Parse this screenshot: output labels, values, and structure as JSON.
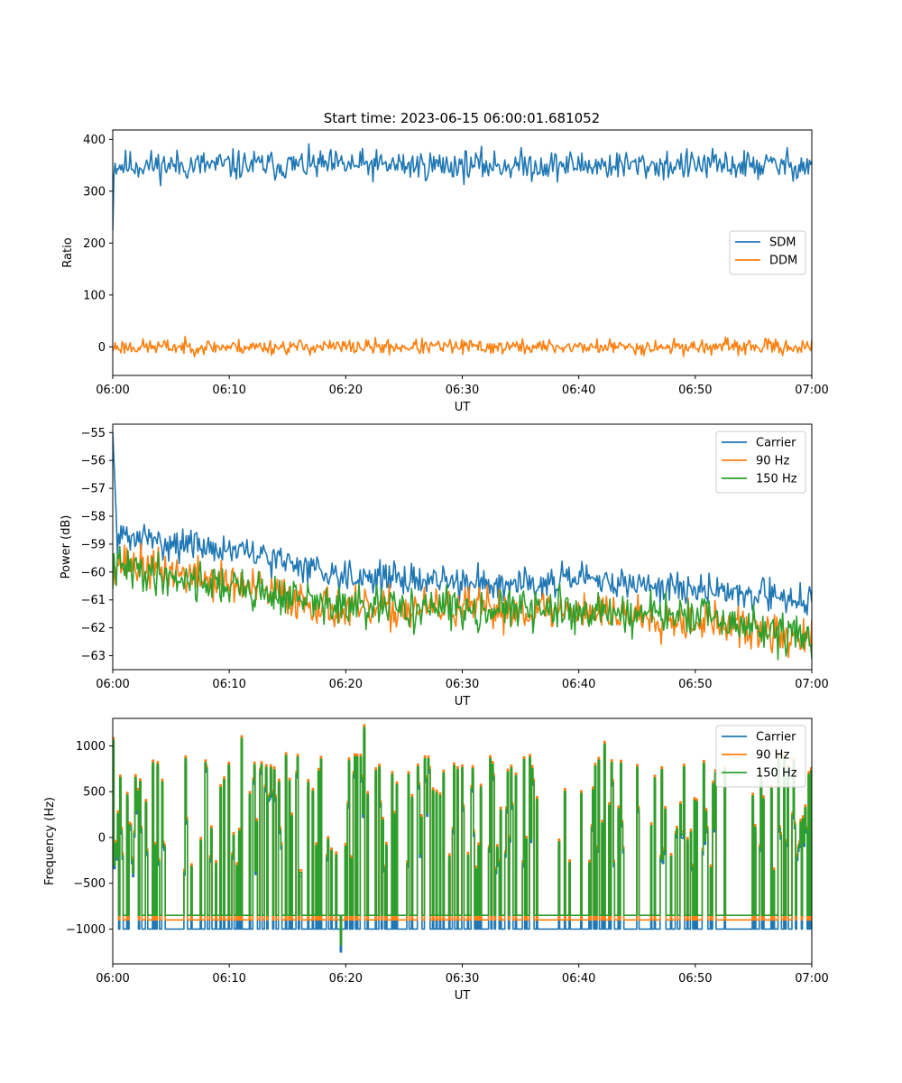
{
  "figure": {
    "title": "Start time: 2023-06-15 06:00:01.681052"
  },
  "colors": {
    "blue": "#1f77b4",
    "orange": "#ff7f0e",
    "green": "#2ca02c"
  },
  "chart_data": [
    {
      "type": "line",
      "xlabel": "UT",
      "ylabel": "Ratio",
      "xlim": [
        0,
        60
      ],
      "ylim": [
        -55,
        418
      ],
      "x_ticks": [
        0,
        10,
        20,
        30,
        40,
        50,
        60
      ],
      "x_tick_labels": [
        "06:00",
        "06:10",
        "06:20",
        "06:30",
        "06:40",
        "06:50",
        "07:00"
      ],
      "y_ticks": [
        0,
        100,
        200,
        300,
        400
      ],
      "y_tick_labels": [
        "0",
        "100",
        "200",
        "300",
        "400"
      ],
      "legend": {
        "position": "center-right",
        "entries": [
          "SDM",
          "DDM"
        ]
      },
      "series": [
        {
          "name": "SDM",
          "color": "#1f77b4",
          "mean": 350,
          "amplitude": 18,
          "start": 225,
          "seed": 11
        },
        {
          "name": "DDM",
          "color": "#ff7f0e",
          "mean": 0,
          "amplitude": 9,
          "start": -8,
          "seed": 23
        }
      ]
    },
    {
      "type": "line",
      "xlabel": "UT",
      "ylabel": "Power (dB)",
      "xlim": [
        0,
        60
      ],
      "ylim": [
        -63.5,
        -54.7
      ],
      "x_ticks": [
        0,
        10,
        20,
        30,
        40,
        50,
        60
      ],
      "x_tick_labels": [
        "06:00",
        "06:10",
        "06:20",
        "06:30",
        "06:40",
        "06:50",
        "07:00"
      ],
      "y_ticks": [
        -55,
        -56,
        -57,
        -58,
        -59,
        -60,
        -61,
        -62,
        -63
      ],
      "y_tick_labels": [
        "−55",
        "−56",
        "−57",
        "−58",
        "−59",
        "−60",
        "−61",
        "−62",
        "−63"
      ],
      "legend": {
        "position": "top-right",
        "entries": [
          "Carrier",
          "90 Hz",
          "150 Hz"
        ]
      },
      "series": [
        {
          "name": "Carrier",
          "color": "#1f77b4",
          "trend": [
            [
              0,
              -58.7
            ],
            [
              10,
              -59.2
            ],
            [
              20,
              -60.1
            ],
            [
              30,
              -60.4
            ],
            [
              40,
              -60.3
            ],
            [
              50,
              -60.6
            ],
            [
              60,
              -61.0
            ]
          ],
          "amplitude": 0.35,
          "start": -55.0,
          "seed": 31
        },
        {
          "name": "90 Hz",
          "color": "#ff7f0e",
          "trend": [
            [
              0,
              -59.6
            ],
            [
              10,
              -60.4
            ],
            [
              20,
              -61.4
            ],
            [
              30,
              -61.3
            ],
            [
              40,
              -61.4
            ],
            [
              50,
              -61.7
            ],
            [
              60,
              -62.5
            ]
          ],
          "amplitude": 0.45,
          "start": -60.3,
          "seed": 37
        },
        {
          "name": "150 Hz",
          "color": "#2ca02c",
          "trend": [
            [
              0,
              -59.8
            ],
            [
              10,
              -60.5
            ],
            [
              20,
              -61.3
            ],
            [
              30,
              -61.3
            ],
            [
              40,
              -61.4
            ],
            [
              50,
              -61.6
            ],
            [
              60,
              -62.4
            ]
          ],
          "amplitude": 0.45,
          "start": -60.6,
          "seed": 41
        }
      ]
    },
    {
      "type": "line",
      "xlabel": "UT",
      "ylabel": "Frequency (Hz)",
      "xlim": [
        0,
        60
      ],
      "ylim": [
        -1380,
        1300
      ],
      "x_ticks": [
        0,
        10,
        20,
        30,
        40,
        50,
        60
      ],
      "x_tick_labels": [
        "06:00",
        "06:10",
        "06:20",
        "06:30",
        "06:40",
        "06:50",
        "07:00"
      ],
      "y_ticks": [
        1000,
        500,
        0,
        -500,
        -1000
      ],
      "y_tick_labels": [
        "1000",
        "500",
        "0",
        "−500",
        "−1000"
      ],
      "legend": {
        "position": "top-right",
        "entries": [
          "Carrier",
          "90 Hz",
          "150 Hz"
        ]
      },
      "series": [
        {
          "name": "Carrier",
          "color": "#1f77b4",
          "floor": -1000,
          "offset": -40
        },
        {
          "name": "90 Hz",
          "color": "#ff7f0e",
          "floor": -900,
          "offset": 30
        },
        {
          "name": "150 Hz",
          "color": "#2ca02c",
          "floor": -850,
          "offset": 0
        }
      ],
      "sparse_gaps_minutes": [
        [
          4.8,
          6.0
        ],
        [
          36.5,
          41.0
        ],
        [
          43.8,
          46.3
        ],
        [
          52.5,
          55.0
        ]
      ]
    }
  ]
}
